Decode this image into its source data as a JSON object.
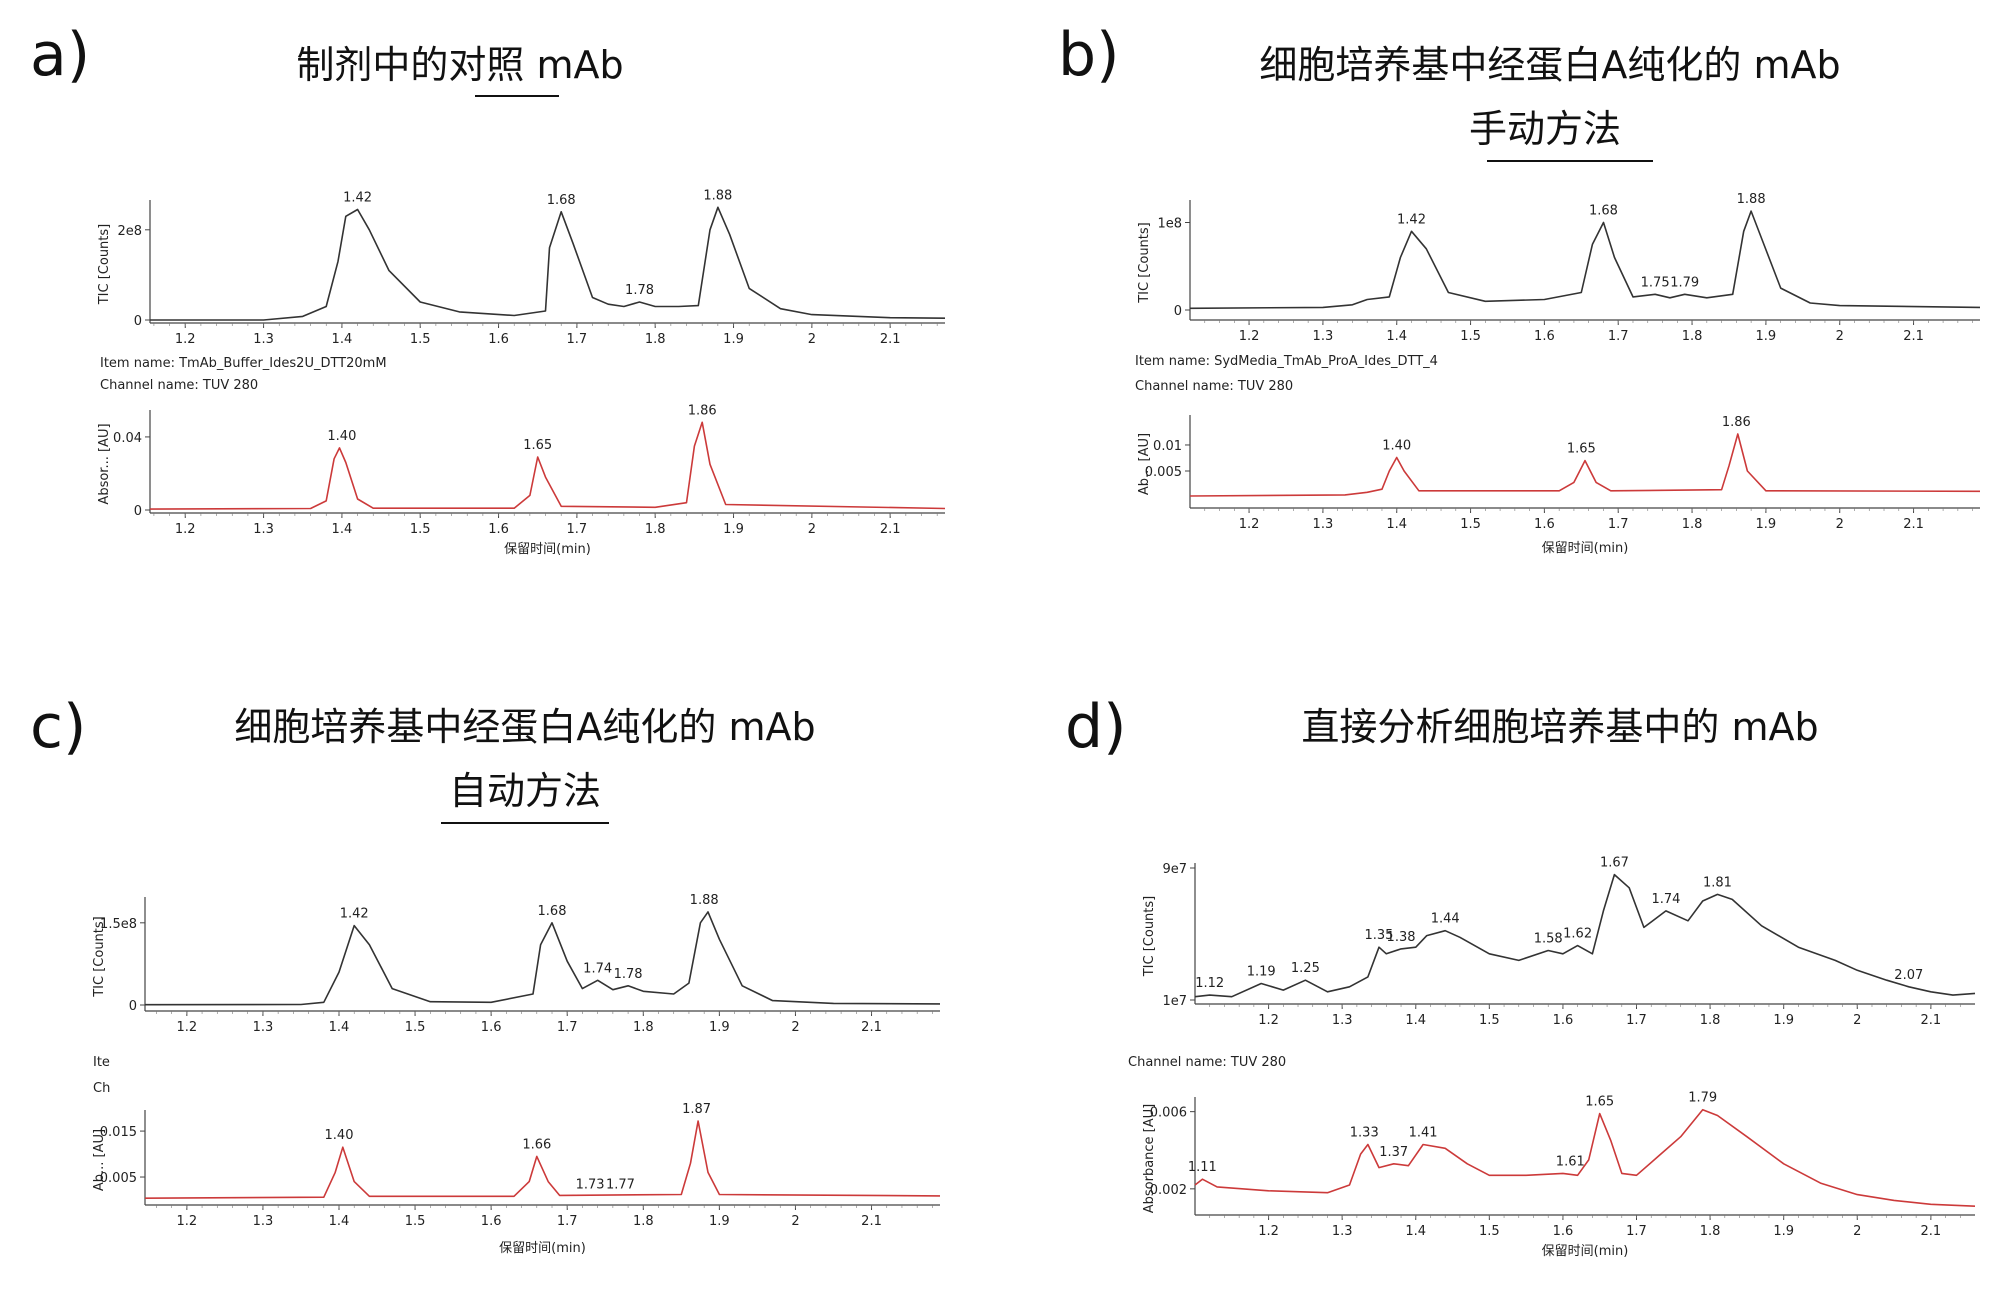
{
  "chart_data": [
    {
      "type": "line",
      "panel_label": "a)",
      "title": "制剂中的对照 mAb",
      "method": "",
      "underline": true,
      "xlabel": "保留时间(min)",
      "xticks": [
        "1.2",
        "1.3",
        "1.4",
        "1.5",
        "1.6",
        "1.7",
        "1.8",
        "1.9",
        "2",
        "2.1"
      ],
      "xlim": [
        1.155,
        2.17
      ],
      "item_name": "Item name: TmAb_Buffer_Ides2U_DTT20mM",
      "channel_name": "Channel name: TUV 280",
      "tic": {
        "ylabel": "TIC [Counts]",
        "yticks": [
          {
            "label": "0",
            "value": 0
          },
          {
            "label": "2e8",
            "value": 200000000
          }
        ],
        "ylim": [
          0,
          255000000
        ],
        "color": "#333333",
        "peaks": [
          {
            "x": 1.42,
            "label": "1.42",
            "y": 245000000
          },
          {
            "x": 1.68,
            "label": "1.68",
            "y": 240000000
          },
          {
            "x": 1.78,
            "label": "1.78",
            "y": 40000000
          },
          {
            "x": 1.88,
            "label": "1.88",
            "y": 250000000
          }
        ],
        "x": [
          1.155,
          1.3,
          1.35,
          1.38,
          1.395,
          1.405,
          1.42,
          1.435,
          1.46,
          1.5,
          1.55,
          1.62,
          1.66,
          1.665,
          1.68,
          1.695,
          1.72,
          1.74,
          1.76,
          1.78,
          1.8,
          1.83,
          1.855,
          1.87,
          1.88,
          1.895,
          1.92,
          1.96,
          2.0,
          2.1,
          2.17
        ],
        "y": [
          0,
          0,
          8000000,
          30000000,
          130000000,
          230000000,
          245000000,
          200000000,
          110000000,
          40000000,
          18000000,
          10000000,
          20000000,
          160000000,
          240000000,
          170000000,
          50000000,
          35000000,
          30000000,
          40000000,
          30000000,
          30000000,
          32000000,
          200000000,
          250000000,
          190000000,
          70000000,
          25000000,
          12000000,
          5000000,
          4000000
        ]
      },
      "uv": {
        "ylabel": "Absor... [AU]",
        "yticks": [
          {
            "label": "0",
            "value": 0
          },
          {
            "label": "0.04",
            "value": 0.04
          }
        ],
        "ylim": [
          0,
          0.052
        ],
        "color": "#cc3a3a",
        "peaks": [
          {
            "x": 1.4,
            "label": "1.40",
            "y": 0.034
          },
          {
            "x": 1.65,
            "label": "1.65",
            "y": 0.029
          },
          {
            "x": 1.86,
            "label": "1.86",
            "y": 0.048
          }
        ],
        "x": [
          1.155,
          1.36,
          1.38,
          1.39,
          1.397,
          1.405,
          1.42,
          1.44,
          1.62,
          1.64,
          1.65,
          1.66,
          1.68,
          1.8,
          1.84,
          1.85,
          1.86,
          1.87,
          1.89,
          2.17
        ],
        "y": [
          0.0005,
          0.0008,
          0.005,
          0.028,
          0.034,
          0.026,
          0.006,
          0.001,
          0.001,
          0.008,
          0.029,
          0.018,
          0.002,
          0.0015,
          0.004,
          0.035,
          0.048,
          0.025,
          0.003,
          0.0008
        ]
      }
    },
    {
      "type": "line",
      "panel_label": "b)",
      "title": "细胞培养基中经蛋白A纯化的 mAb",
      "method": "手动方法",
      "underline": true,
      "xlabel": "保留时间(min)",
      "xticks": [
        "1.2",
        "1.3",
        "1.4",
        "1.5",
        "1.6",
        "1.7",
        "1.8",
        "1.9",
        "2",
        "2.1"
      ],
      "xlim": [
        1.12,
        2.19
      ],
      "item_name": "Item name: SydMedia_TmAb_ProA_Ides_DTT_4",
      "channel_name": "Channel name: TUV 280",
      "tic": {
        "ylabel": "TIC [Counts]",
        "yticks": [
          {
            "label": "0",
            "value": 0
          },
          {
            "label": "1e8",
            "value": 100000000
          }
        ],
        "ylim": [
          0,
          120000000
        ],
        "color": "#333333",
        "peaks": [
          {
            "x": 1.42,
            "label": "1.42",
            "y": 90000000
          },
          {
            "x": 1.68,
            "label": "1.68",
            "y": 100000000
          },
          {
            "x": 1.75,
            "label": "1.75",
            "y": 18000000
          },
          {
            "x": 1.79,
            "label": "1.79",
            "y": 18000000
          },
          {
            "x": 1.88,
            "label": "1.88",
            "y": 113000000
          }
        ],
        "x": [
          1.12,
          1.3,
          1.34,
          1.36,
          1.39,
          1.405,
          1.42,
          1.44,
          1.47,
          1.52,
          1.6,
          1.65,
          1.665,
          1.68,
          1.695,
          1.72,
          1.75,
          1.77,
          1.79,
          1.82,
          1.855,
          1.87,
          1.88,
          1.895,
          1.92,
          1.96,
          2.0,
          2.19
        ],
        "y": [
          2000000,
          3000000,
          6000000,
          12000000,
          15000000,
          60000000,
          90000000,
          70000000,
          20000000,
          10000000,
          12000000,
          20000000,
          75000000,
          100000000,
          60000000,
          15000000,
          18000000,
          14000000,
          18000000,
          14000000,
          18000000,
          90000000,
          113000000,
          80000000,
          25000000,
          8000000,
          5000000,
          3000000
        ]
      },
      "uv": {
        "ylabel": "Ab... [AU]",
        "yticks": [
          {
            "label": "0.005",
            "value": 0.005
          },
          {
            "label": "0.01",
            "value": 0.01
          }
        ],
        "ylim": [
          0,
          0.0148
        ],
        "color": "#cc3a3a",
        "peaks": [
          {
            "x": 1.4,
            "label": "1.40",
            "y": 0.0076
          },
          {
            "x": 1.65,
            "label": "1.65",
            "y": 0.007
          },
          {
            "x": 1.86,
            "label": "1.86",
            "y": 0.0121
          }
        ],
        "x": [
          1.12,
          1.33,
          1.36,
          1.38,
          1.39,
          1.4,
          1.41,
          1.43,
          1.62,
          1.64,
          1.655,
          1.67,
          1.69,
          1.84,
          1.85,
          1.862,
          1.875,
          1.9,
          2.19
        ],
        "y": [
          0.0002,
          0.0004,
          0.0009,
          0.0015,
          0.005,
          0.0076,
          0.005,
          0.0012,
          0.0012,
          0.0028,
          0.007,
          0.0028,
          0.0012,
          0.0014,
          0.006,
          0.0121,
          0.005,
          0.0012,
          0.0011
        ]
      }
    },
    {
      "type": "line",
      "panel_label": "c)",
      "title": "细胞培养基中经蛋白A纯化的 mAb",
      "method": "自动方法",
      "underline": true,
      "xlabel": "保留时间(min)",
      "xticks": [
        "1.2",
        "1.3",
        "1.4",
        "1.5",
        "1.6",
        "1.7",
        "1.8",
        "1.9",
        "2",
        "2.1"
      ],
      "xlim": [
        1.145,
        2.19
      ],
      "item_name": "Ite",
      "channel_name": "Ch",
      "tic": {
        "ylabel": "TIC [Counts]",
        "yticks": [
          {
            "label": "0",
            "value": 0
          },
          {
            "label": "1.5e8",
            "value": 150000000
          }
        ],
        "ylim": [
          0,
          188000000
        ],
        "color": "#333333",
        "peaks": [
          {
            "x": 1.42,
            "label": "1.42",
            "y": 145000000
          },
          {
            "x": 1.68,
            "label": "1.68",
            "y": 150000000
          },
          {
            "x": 1.74,
            "label": "1.74",
            "y": 45000000
          },
          {
            "x": 1.78,
            "label": "1.78",
            "y": 35000000
          },
          {
            "x": 1.88,
            "label": "1.88",
            "y": 170000000
          }
        ],
        "x": [
          1.145,
          1.35,
          1.38,
          1.4,
          1.42,
          1.44,
          1.47,
          1.52,
          1.6,
          1.655,
          1.665,
          1.68,
          1.7,
          1.72,
          1.74,
          1.76,
          1.78,
          1.8,
          1.84,
          1.86,
          1.875,
          1.885,
          1.9,
          1.93,
          1.97,
          2.05,
          2.19
        ],
        "y": [
          500000,
          1000000,
          5000000,
          60000000,
          145000000,
          110000000,
          30000000,
          6000000,
          5000000,
          20000000,
          110000000,
          150000000,
          80000000,
          30000000,
          45000000,
          28000000,
          35000000,
          25000000,
          20000000,
          40000000,
          150000000,
          170000000,
          120000000,
          35000000,
          8000000,
          3000000,
          2000000
        ]
      },
      "uv": {
        "ylabel": "Ab... [AU]",
        "yticks": [
          {
            "label": "0.005",
            "value": 0.005
          },
          {
            "label": "0.015",
            "value": 0.015
          }
        ],
        "ylim": [
          0,
          0.0185
        ],
        "color": "#cc3a3a",
        "peaks": [
          {
            "x": 1.4,
            "label": "1.40",
            "y": 0.0115
          },
          {
            "x": 1.66,
            "label": "1.66",
            "y": 0.0095
          },
          {
            "x": 1.73,
            "label": "1.73",
            "y": 0.0008
          },
          {
            "x": 1.77,
            "label": "1.77",
            "y": 0.0008
          },
          {
            "x": 1.87,
            "label": "1.87",
            "y": 0.0172
          }
        ],
        "x": [
          1.145,
          1.38,
          1.395,
          1.405,
          1.42,
          1.44,
          1.63,
          1.65,
          1.66,
          1.675,
          1.69,
          1.85,
          1.862,
          1.872,
          1.885,
          1.9,
          2.19
        ],
        "y": [
          0.0004,
          0.0006,
          0.006,
          0.0115,
          0.004,
          0.0008,
          0.0008,
          0.004,
          0.0095,
          0.004,
          0.001,
          0.0012,
          0.008,
          0.0172,
          0.006,
          0.0012,
          0.0009
        ]
      }
    },
    {
      "type": "line",
      "panel_label": "d)",
      "title": "直接分析细胞培养基中的 mAb",
      "method": "",
      "underline": false,
      "xlabel": "保留时间(min)",
      "xticks": [
        "1.2",
        "1.3",
        "1.4",
        "1.5",
        "1.6",
        "1.7",
        "1.8",
        "1.9",
        "2",
        "2.1"
      ],
      "xlim": [
        1.1,
        2.16
      ],
      "item_name": "",
      "channel_name": "Channel name: TUV 280",
      "tic": {
        "ylabel": "TIC [Counts]",
        "yticks": [
          {
            "label": "1e7",
            "value": 10000000
          },
          {
            "label": "9e7",
            "value": 90000000
          }
        ],
        "ylim": [
          10000000,
          90000000
        ],
        "color": "#333333",
        "peaks": [
          {
            "x": 1.12,
            "label": "1.12",
            "y": 13000000
          },
          {
            "x": 1.19,
            "label": "1.19",
            "y": 20000000
          },
          {
            "x": 1.25,
            "label": "1.25",
            "y": 22000000
          },
          {
            "x": 1.35,
            "label": "1.35",
            "y": 42000000
          },
          {
            "x": 1.38,
            "label": "1.38",
            "y": 41000000
          },
          {
            "x": 1.44,
            "label": "1.44",
            "y": 52000000
          },
          {
            "x": 1.58,
            "label": "1.58",
            "y": 40000000
          },
          {
            "x": 1.62,
            "label": "1.62",
            "y": 43000000
          },
          {
            "x": 1.67,
            "label": "1.67",
            "y": 86000000
          },
          {
            "x": 1.74,
            "label": "1.74",
            "y": 64000000
          },
          {
            "x": 1.81,
            "label": "1.81",
            "y": 74000000
          },
          {
            "x": 2.07,
            "label": "2.07",
            "y": 18000000
          }
        ],
        "x": [
          1.1,
          1.12,
          1.15,
          1.19,
          1.22,
          1.25,
          1.28,
          1.31,
          1.335,
          1.35,
          1.36,
          1.38,
          1.4,
          1.415,
          1.44,
          1.46,
          1.5,
          1.54,
          1.58,
          1.6,
          1.62,
          1.64,
          1.655,
          1.67,
          1.69,
          1.71,
          1.74,
          1.77,
          1.79,
          1.81,
          1.83,
          1.87,
          1.92,
          1.97,
          2.0,
          2.04,
          2.07,
          2.1,
          2.13,
          2.16
        ],
        "y": [
          12000000,
          13000000,
          12000000,
          20000000,
          16000000,
          22000000,
          15000000,
          18000000,
          24000000,
          42000000,
          38000000,
          41000000,
          42000000,
          49000000,
          52000000,
          48000000,
          38000000,
          34000000,
          40000000,
          38000000,
          43000000,
          38000000,
          64000000,
          86000000,
          78000000,
          54000000,
          64000000,
          58000000,
          70000000,
          74000000,
          71000000,
          55000000,
          42000000,
          34000000,
          28000000,
          22000000,
          18000000,
          15000000,
          13000000,
          14000000
        ]
      },
      "uv": {
        "ylabel": "Absorbance [AU]",
        "yticks": [
          {
            "label": "0.002",
            "value": 0.002
          },
          {
            "label": "0.006",
            "value": 0.006
          }
        ],
        "ylim": [
          0.0008,
          0.0065
        ],
        "color": "#cc3a3a",
        "peaks": [
          {
            "x": 1.11,
            "label": "1.11",
            "y": 0.0025
          },
          {
            "x": 1.33,
            "label": "1.33",
            "y": 0.0043
          },
          {
            "x": 1.37,
            "label": "1.37",
            "y": 0.0033
          },
          {
            "x": 1.41,
            "label": "1.41",
            "y": 0.0043
          },
          {
            "x": 1.61,
            "label": "1.61",
            "y": 0.0028
          },
          {
            "x": 1.65,
            "label": "1.65",
            "y": 0.0059
          },
          {
            "x": 1.79,
            "label": "1.79",
            "y": 0.0061
          }
        ],
        "x": [
          1.1,
          1.11,
          1.13,
          1.2,
          1.28,
          1.31,
          1.325,
          1.335,
          1.35,
          1.37,
          1.39,
          1.41,
          1.44,
          1.47,
          1.5,
          1.55,
          1.6,
          1.62,
          1.635,
          1.65,
          1.665,
          1.68,
          1.7,
          1.73,
          1.76,
          1.79,
          1.81,
          1.85,
          1.9,
          1.95,
          2.0,
          2.05,
          2.1,
          2.16
        ],
        "y": [
          0.0022,
          0.0025,
          0.0021,
          0.0019,
          0.0018,
          0.0022,
          0.0038,
          0.0043,
          0.0031,
          0.0033,
          0.0032,
          0.0043,
          0.0041,
          0.0033,
          0.0027,
          0.0027,
          0.0028,
          0.0027,
          0.0035,
          0.0059,
          0.0045,
          0.0028,
          0.0027,
          0.0037,
          0.0047,
          0.0061,
          0.0058,
          0.0047,
          0.0033,
          0.0023,
          0.0017,
          0.0014,
          0.0012,
          0.0011
        ]
      }
    }
  ]
}
